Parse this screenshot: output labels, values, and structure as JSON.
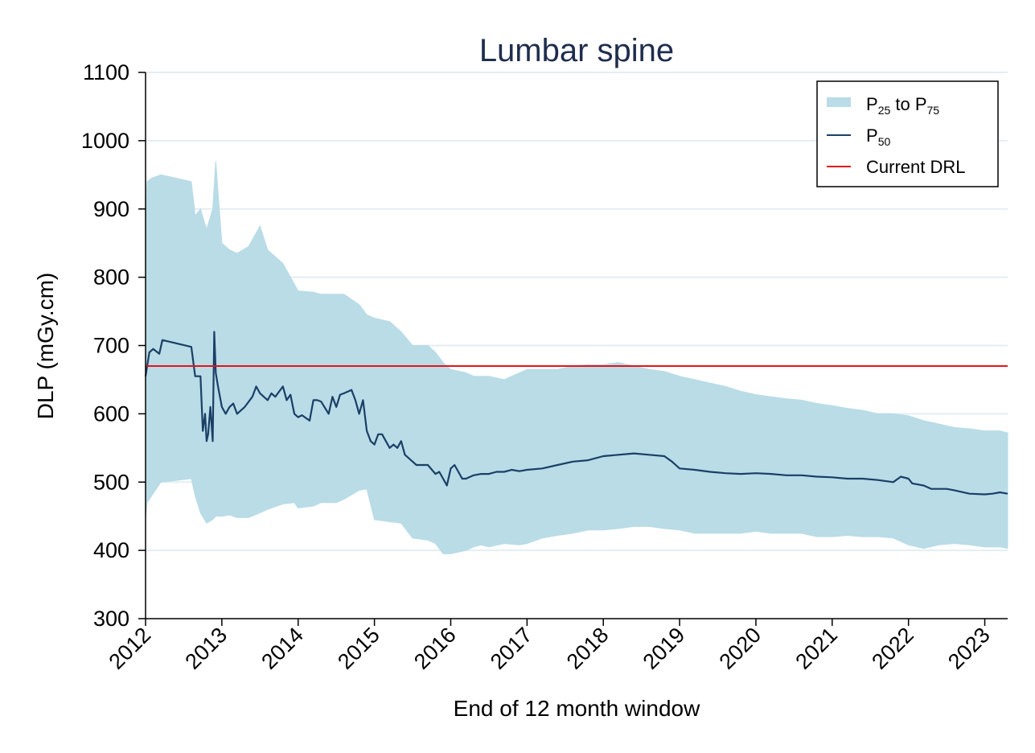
{
  "chart_data": {
    "type": "line",
    "title": "Lumbar spine",
    "xlabel": "End of 12 month window",
    "ylabel": "DLP (mGy.cm)",
    "xlim": [
      2012,
      2023.3
    ],
    "ylim": [
      300,
      1100
    ],
    "x_ticks": [
      "2012",
      "2013",
      "2014",
      "2015",
      "2016",
      "2017",
      "2018",
      "2019",
      "2020",
      "2021",
      "2022",
      "2023"
    ],
    "y_ticks": [
      "300",
      "400",
      "500",
      "600",
      "700",
      "800",
      "900",
      "1000",
      "1100"
    ],
    "grid": "horizontal",
    "legend": {
      "position": "top-right",
      "entries": [
        {
          "main": "P",
          "sub": "25",
          "mid": " to P",
          "sub2": "75"
        },
        {
          "main": "P",
          "sub": "50",
          "mid": "",
          "sub2": ""
        },
        {
          "main": "Current DRL",
          "sub": "",
          "mid": "",
          "sub2": ""
        }
      ]
    },
    "colors": {
      "band": "#b9dce7",
      "median": "#1b3f66",
      "drl": "#e4141b",
      "title": "#1f2d4d",
      "grid": "#e3eef2"
    },
    "series": [
      {
        "name": "P25 to P75",
        "kind": "band",
        "x": [
          2012.0,
          2012.02,
          2012.08,
          2012.2,
          2012.6,
          2012.65,
          2012.72,
          2012.8,
          2012.88,
          2012.92,
          2013.0,
          2013.1,
          2013.2,
          2013.35,
          2013.5,
          2013.6,
          2013.8,
          2013.95,
          2014.0,
          2014.2,
          2014.3,
          2014.5,
          2014.6,
          2014.8,
          2014.9,
          2015.0,
          2015.2,
          2015.35,
          2015.5,
          2015.7,
          2015.8,
          2015.9,
          2016.0,
          2016.2,
          2016.3,
          2016.4,
          2016.5,
          2016.7,
          2016.9,
          2017.0,
          2017.2,
          2017.4,
          2017.6,
          2017.8,
          2018.0,
          2018.2,
          2018.4,
          2018.6,
          2018.8,
          2019.0,
          2019.2,
          2019.4,
          2019.6,
          2019.8,
          2020.0,
          2020.2,
          2020.4,
          2020.6,
          2020.8,
          2021.0,
          2021.2,
          2021.4,
          2021.6,
          2021.8,
          2022.0,
          2022.2,
          2022.4,
          2022.6,
          2022.8,
          2023.0,
          2023.2,
          2023.3
        ],
        "low": [
          445,
          470,
          480,
          500,
          505,
          480,
          455,
          440,
          445,
          450,
          450,
          452,
          448,
          448,
          455,
          460,
          468,
          470,
          462,
          465,
          470,
          470,
          475,
          488,
          490,
          445,
          442,
          440,
          418,
          415,
          410,
          395,
          395,
          400,
          405,
          408,
          405,
          410,
          408,
          410,
          418,
          422,
          425,
          430,
          430,
          432,
          435,
          435,
          432,
          430,
          425,
          425,
          425,
          425,
          428,
          425,
          425,
          425,
          420,
          420,
          422,
          420,
          420,
          418,
          408,
          403,
          408,
          410,
          408,
          405,
          405,
          403
        ],
        "high": [
          880,
          940,
          945,
          950,
          940,
          890,
          900,
          870,
          900,
          970,
          850,
          840,
          835,
          845,
          875,
          840,
          820,
          790,
          780,
          778,
          775,
          775,
          775,
          760,
          745,
          740,
          735,
          720,
          700,
          700,
          690,
          675,
          665,
          660,
          655,
          655,
          655,
          650,
          660,
          665,
          665,
          665,
          670,
          672,
          672,
          675,
          670,
          665,
          662,
          655,
          650,
          645,
          640,
          633,
          628,
          625,
          622,
          620,
          615,
          612,
          608,
          605,
          600,
          600,
          597,
          590,
          585,
          580,
          578,
          575,
          575,
          572
        ]
      },
      {
        "name": "P50",
        "kind": "line",
        "x": [
          2012.0,
          2012.05,
          2012.1,
          2012.18,
          2012.22,
          2012.6,
          2012.65,
          2012.72,
          2012.75,
          2012.78,
          2012.8,
          2012.82,
          2012.85,
          2012.88,
          2012.9,
          2012.92,
          2012.95,
          2013.0,
          2013.05,
          2013.1,
          2013.15,
          2013.2,
          2013.3,
          2013.4,
          2013.45,
          2013.5,
          2013.6,
          2013.65,
          2013.7,
          2013.8,
          2013.85,
          2013.9,
          2013.95,
          2014.0,
          2014.05,
          2014.15,
          2014.2,
          2014.25,
          2014.3,
          2014.4,
          2014.45,
          2014.5,
          2014.55,
          2014.6,
          2014.7,
          2014.75,
          2014.8,
          2014.85,
          2014.9,
          2014.95,
          2015.0,
          2015.05,
          2015.1,
          2015.15,
          2015.2,
          2015.25,
          2015.3,
          2015.35,
          2015.4,
          2015.55,
          2015.7,
          2015.8,
          2015.85,
          2015.9,
          2015.95,
          2016.0,
          2016.05,
          2016.1,
          2016.15,
          2016.2,
          2016.3,
          2016.4,
          2016.5,
          2016.6,
          2016.7,
          2016.8,
          2016.9,
          2017.0,
          2017.2,
          2017.4,
          2017.6,
          2017.8,
          2018.0,
          2018.2,
          2018.4,
          2018.6,
          2018.8,
          2018.9,
          2019.0,
          2019.2,
          2019.4,
          2019.6,
          2019.8,
          2020.0,
          2020.2,
          2020.4,
          2020.6,
          2020.8,
          2021.0,
          2021.2,
          2021.4,
          2021.6,
          2021.8,
          2021.9,
          2022.0,
          2022.05,
          2022.2,
          2022.3,
          2022.5,
          2022.6,
          2022.8,
          2023.0,
          2023.1,
          2023.2,
          2023.3
        ],
        "y": [
          655,
          690,
          695,
          688,
          708,
          698,
          655,
          655,
          575,
          600,
          560,
          570,
          610,
          560,
          720,
          660,
          640,
          610,
          600,
          610,
          615,
          600,
          610,
          625,
          640,
          630,
          620,
          630,
          625,
          640,
          620,
          628,
          600,
          595,
          598,
          590,
          620,
          620,
          618,
          600,
          625,
          610,
          628,
          630,
          635,
          620,
          600,
          620,
          575,
          560,
          555,
          570,
          570,
          560,
          550,
          555,
          550,
          560,
          540,
          525,
          525,
          512,
          515,
          505,
          495,
          520,
          525,
          515,
          505,
          505,
          510,
          512,
          512,
          515,
          515,
          518,
          516,
          518,
          520,
          525,
          530,
          532,
          538,
          540,
          542,
          540,
          538,
          530,
          520,
          518,
          515,
          513,
          512,
          513,
          512,
          510,
          510,
          508,
          507,
          505,
          505,
          503,
          500,
          508,
          505,
          498,
          495,
          490,
          490,
          488,
          483,
          482,
          483,
          485,
          483
        ]
      },
      {
        "name": "Current DRL",
        "kind": "hline",
        "y": 670
      }
    ]
  }
}
